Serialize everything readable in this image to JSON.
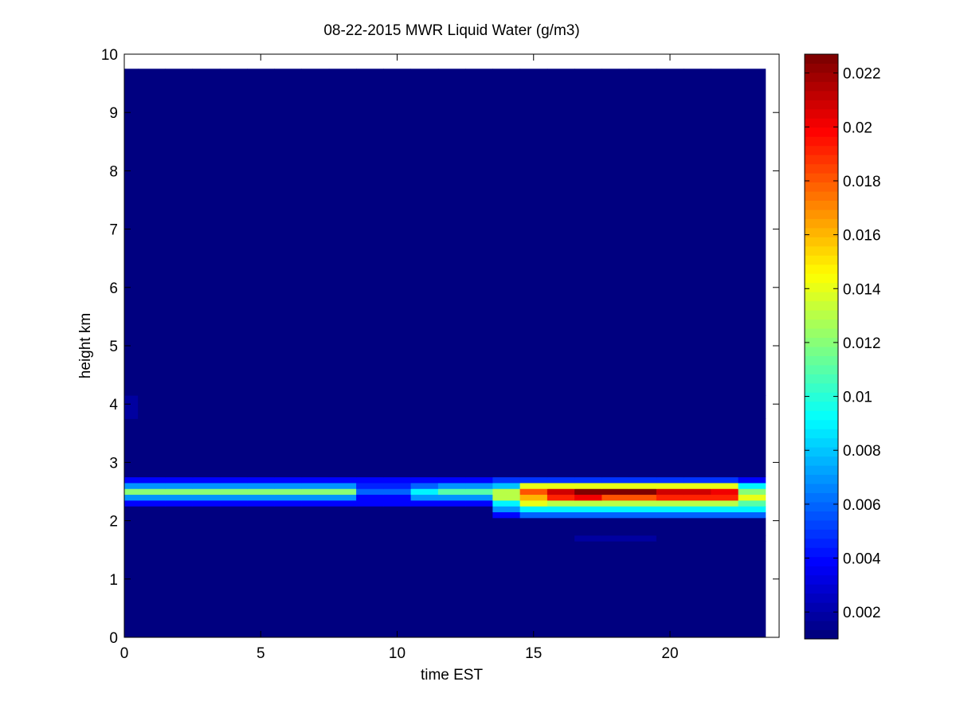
{
  "chart_data": {
    "type": "heatmap",
    "title": "08-22-2015 MWR Liquid Water (g/m3)",
    "x_label": "time EST",
    "y_label": "height km",
    "x_bins": [
      -0.5,
      0.5,
      1.5,
      2.5,
      3.5,
      4.5,
      5.5,
      6.5,
      7.5,
      8.5,
      9.5,
      10.5,
      11.5,
      12.5,
      13.5,
      14.5,
      15.5,
      16.5,
      17.5,
      18.5,
      19.5,
      20.5,
      21.5,
      22.5,
      23.5
    ],
    "y_bins": [
      0,
      1.65,
      1.75,
      2.05,
      2.15,
      2.25,
      2.35,
      2.45,
      2.55,
      2.65,
      2.75,
      3.75,
      4.15,
      9.75
    ],
    "z": [
      [
        0.001,
        0.001,
        0.001,
        0.001,
        0.001,
        0.001,
        0.001,
        0.001,
        0.001,
        0.001,
        0.001,
        0.001,
        0.001,
        0.001,
        0.001,
        0.001,
        0.001,
        0.001,
        0.001,
        0.001,
        0.001,
        0.001,
        0.001,
        0.001
      ],
      [
        0.001,
        0.001,
        0.001,
        0.001,
        0.001,
        0.001,
        0.001,
        0.001,
        0.001,
        0.001,
        0.001,
        0.001,
        0.001,
        0.001,
        0.001,
        0.001,
        0.001,
        0.002,
        0.002,
        0.002,
        0.001,
        0.001,
        0.001,
        0.001
      ],
      [
        0.001,
        0.001,
        0.001,
        0.001,
        0.001,
        0.001,
        0.001,
        0.001,
        0.001,
        0.001,
        0.001,
        0.001,
        0.001,
        0.001,
        0.001,
        0.001,
        0.001,
        0.001,
        0.001,
        0.001,
        0.001,
        0.001,
        0.001,
        0.001
      ],
      [
        0.001,
        0.001,
        0.001,
        0.001,
        0.001,
        0.001,
        0.001,
        0.001,
        0.001,
        0.001,
        0.001,
        0.001,
        0.001,
        0.001,
        0.004,
        0.006,
        0.006,
        0.006,
        0.006,
        0.006,
        0.006,
        0.006,
        0.006,
        0.006
      ],
      [
        0.001,
        0.001,
        0.001,
        0.001,
        0.001,
        0.001,
        0.001,
        0.001,
        0.001,
        0.001,
        0.001,
        0.001,
        0.001,
        0.001,
        0.007,
        0.009,
        0.009,
        0.009,
        0.009,
        0.009,
        0.009,
        0.009,
        0.009,
        0.009
      ],
      [
        0.004,
        0.004,
        0.004,
        0.004,
        0.004,
        0.004,
        0.004,
        0.004,
        0.004,
        0.004,
        0.004,
        0.004,
        0.004,
        0.004,
        0.009,
        0.014,
        0.013,
        0.013,
        0.013,
        0.013,
        0.013,
        0.013,
        0.013,
        0.011
      ],
      [
        0.007,
        0.007,
        0.007,
        0.007,
        0.007,
        0.007,
        0.007,
        0.007,
        0.007,
        0.004,
        0.004,
        0.007,
        0.007,
        0.007,
        0.013,
        0.016,
        0.019,
        0.02,
        0.018,
        0.018,
        0.019,
        0.019,
        0.019,
        0.014
      ],
      [
        0.012,
        0.012,
        0.012,
        0.012,
        0.012,
        0.012,
        0.012,
        0.012,
        0.012,
        0.006,
        0.006,
        0.009,
        0.011,
        0.011,
        0.013,
        0.018,
        0.021,
        0.0225,
        0.0225,
        0.0225,
        0.021,
        0.021,
        0.02,
        0.012
      ],
      [
        0.007,
        0.007,
        0.007,
        0.007,
        0.007,
        0.007,
        0.007,
        0.007,
        0.007,
        0.0045,
        0.0045,
        0.006,
        0.007,
        0.007,
        0.008,
        0.014,
        0.014,
        0.014,
        0.014,
        0.014,
        0.014,
        0.014,
        0.014,
        0.009
      ],
      [
        0.004,
        0.004,
        0.004,
        0.004,
        0.004,
        0.004,
        0.004,
        0.004,
        0.004,
        0.004,
        0.004,
        0.004,
        0.004,
        0.004,
        0.005,
        0.005,
        0.005,
        0.005,
        0.005,
        0.005,
        0.005,
        0.005,
        0.005,
        0.004
      ],
      [
        0.001,
        0.001,
        0.001,
        0.001,
        0.001,
        0.001,
        0.001,
        0.001,
        0.001,
        0.001,
        0.001,
        0.001,
        0.001,
        0.001,
        0.001,
        0.001,
        0.001,
        0.001,
        0.001,
        0.001,
        0.001,
        0.001,
        0.001,
        0.001
      ],
      [
        0.002,
        0.001,
        0.001,
        0.001,
        0.001,
        0.001,
        0.001,
        0.001,
        0.001,
        0.001,
        0.001,
        0.001,
        0.001,
        0.001,
        0.001,
        0.001,
        0.001,
        0.001,
        0.001,
        0.001,
        0.001,
        0.001,
        0.001,
        0.001
      ],
      [
        0.001,
        0.001,
        0.001,
        0.001,
        0.001,
        0.001,
        0.001,
        0.001,
        0.001,
        0.001,
        0.001,
        0.001,
        0.001,
        0.001,
        0.001,
        0.001,
        0.001,
        0.001,
        0.001,
        0.001,
        0.001,
        0.001,
        0.001,
        0.001
      ]
    ],
    "xlim": [
      0,
      24
    ],
    "xticks": [
      0,
      5,
      10,
      15,
      20
    ],
    "ylim": [
      0,
      10
    ],
    "yticks": [
      0,
      1,
      2,
      3,
      4,
      5,
      6,
      7,
      8,
      9,
      10
    ],
    "colormap": "jet",
    "clim": [
      0.001,
      0.0227
    ],
    "cticks": [
      0.002,
      0.004,
      0.006,
      0.008,
      0.01,
      0.012,
      0.014,
      0.016,
      0.018,
      0.02,
      0.022
    ]
  }
}
